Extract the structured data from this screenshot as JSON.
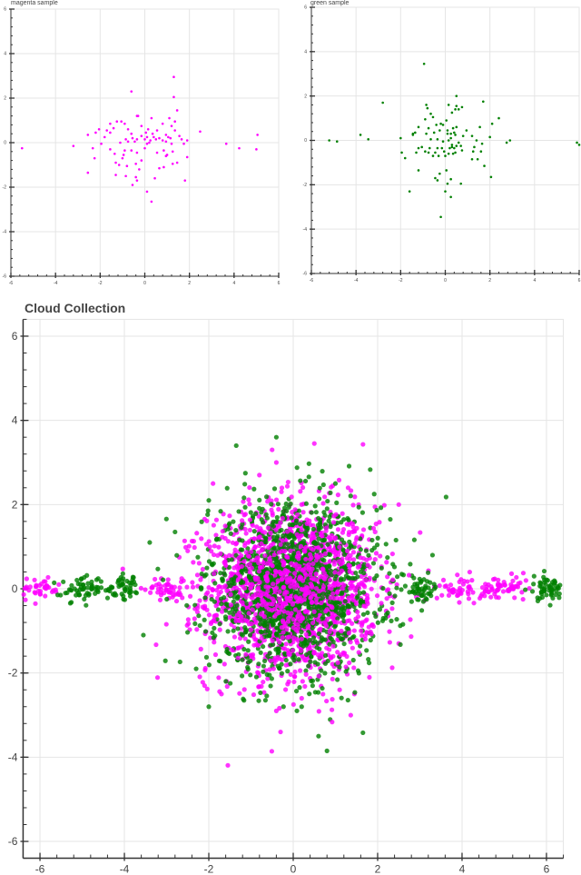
{
  "chart_data": [
    {
      "id": "magenta",
      "type": "scatter",
      "title": "magenta sample",
      "xlabel": "",
      "ylabel": "",
      "xlim": [
        -6,
        6
      ],
      "ylim": [
        -6,
        6
      ],
      "xticks": [
        -6,
        -4,
        -2,
        0,
        2,
        4,
        6
      ],
      "yticks": [
        -6,
        -4,
        -2,
        0,
        2,
        4,
        6
      ],
      "grid": true,
      "color": "#ff00ff",
      "points": [
        [
          -5.5,
          -0.25
        ],
        [
          -3.2,
          -0.15
        ],
        [
          -2.55,
          0.35
        ],
        [
          -2.33,
          -0.25
        ],
        [
          -2.55,
          -1.35
        ],
        [
          -0.6,
          2.3
        ],
        [
          1.3,
          2.95
        ],
        [
          1.3,
          2.05
        ],
        [
          3.65,
          -0.05
        ],
        [
          4.23,
          -0.25
        ],
        [
          5.0,
          -0.3
        ],
        [
          2.48,
          0.5
        ],
        [
          5.05,
          0.35
        ],
        [
          -2.2,
          0.45
        ],
        [
          -2.05,
          0.6
        ],
        [
          -1.55,
          0.85
        ],
        [
          -1.7,
          0.55
        ],
        [
          -1.55,
          0.45
        ],
        [
          -1.4,
          0.65
        ],
        [
          -1.25,
          0.95
        ],
        [
          -1.05,
          0.95
        ],
        [
          -0.9,
          0.85
        ],
        [
          -0.75,
          0.6
        ],
        [
          -0.6,
          0.4
        ],
        [
          -0.35,
          1.2
        ],
        [
          -0.3,
          1.2
        ],
        [
          -0.15,
          0.75
        ],
        [
          0.15,
          0.6
        ],
        [
          0.3,
          1.1
        ],
        [
          0.55,
          0.55
        ],
        [
          0.8,
          0.85
        ],
        [
          0.95,
          0.35
        ],
        [
          1.15,
          0.2
        ],
        [
          1.35,
          0.55
        ],
        [
          1.45,
          1.45
        ],
        [
          1.35,
          0.95
        ],
        [
          1.1,
          1.1
        ],
        [
          1.2,
          0.75
        ],
        [
          -1.1,
          0.0
        ],
        [
          -0.85,
          0.15
        ],
        [
          -0.55,
          0.2
        ],
        [
          -0.35,
          0.15
        ],
        [
          -0.15,
          0.3
        ],
        [
          0.0,
          0.15
        ],
        [
          0.1,
          0.25
        ],
        [
          0.25,
          0.1
        ],
        [
          0.4,
          0.25
        ],
        [
          0.5,
          0.15
        ],
        [
          0.65,
          0.2
        ],
        [
          0.8,
          0.1
        ],
        [
          0.95,
          0.05
        ],
        [
          1.05,
          0.25
        ],
        [
          1.2,
          -0.05
        ],
        [
          1.65,
          0.15
        ],
        [
          1.75,
          -0.05
        ],
        [
          1.9,
          0.1
        ],
        [
          -1.55,
          -0.3
        ],
        [
          -1.35,
          -0.5
        ],
        [
          -1.0,
          -0.7
        ],
        [
          -0.9,
          -0.35
        ],
        [
          -0.6,
          -0.35
        ],
        [
          -0.35,
          -0.45
        ],
        [
          -0.15,
          -0.8
        ],
        [
          0.0,
          -0.25
        ],
        [
          0.1,
          -0.05
        ],
        [
          0.55,
          -0.45
        ],
        [
          0.85,
          -0.35
        ],
        [
          0.95,
          -0.6
        ],
        [
          1.0,
          -0.55
        ],
        [
          1.25,
          -0.4
        ],
        [
          1.45,
          -0.9
        ],
        [
          1.9,
          -0.65
        ],
        [
          -1.3,
          -0.9
        ],
        [
          -1.15,
          -1.0
        ],
        [
          -0.8,
          -1.05
        ],
        [
          -0.4,
          -0.95
        ],
        [
          -0.25,
          -1.2
        ],
        [
          0.65,
          -1.15
        ],
        [
          0.85,
          -1.1
        ],
        [
          1.25,
          -0.95
        ],
        [
          -1.3,
          -1.45
        ],
        [
          -0.85,
          -1.5
        ],
        [
          -0.4,
          -1.55
        ],
        [
          -0.55,
          -1.9
        ],
        [
          -0.35,
          -1.7
        ],
        [
          0.45,
          -1.6
        ],
        [
          1.8,
          -1.7
        ],
        [
          0.1,
          -2.2
        ],
        [
          0.3,
          -2.65
        ],
        [
          -0.75,
          0.05
        ],
        [
          -0.45,
          0.05
        ],
        [
          0.2,
          0.0
        ],
        [
          0.35,
          0.4
        ],
        [
          0.05,
          0.45
        ],
        [
          -1.95,
          -0.05
        ],
        [
          -1.8,
          0.25
        ],
        [
          -2.25,
          -0.7
        ],
        [
          -0.95,
          -0.55
        ],
        [
          1.55,
          0.3
        ]
      ]
    },
    {
      "id": "green",
      "type": "scatter",
      "title": "green sample",
      "xlabel": "",
      "ylabel": "",
      "xlim": [
        -6,
        6
      ],
      "ylim": [
        -6,
        6
      ],
      "xticks": [
        -6,
        -4,
        -2,
        0,
        2,
        4,
        6
      ],
      "yticks": [
        -6,
        -4,
        -2,
        0,
        2,
        4,
        6
      ],
      "grid": true,
      "color": "#008000",
      "points": [
        [
          -5.2,
          0.0
        ],
        [
          -4.85,
          -0.05
        ],
        [
          -3.8,
          0.25
        ],
        [
          -3.45,
          0.05
        ],
        [
          -2.8,
          1.7
        ],
        [
          -0.95,
          3.45
        ],
        [
          0.5,
          2.0
        ],
        [
          1.7,
          1.75
        ],
        [
          2.4,
          1.0
        ],
        [
          2.1,
          0.75
        ],
        [
          2.75,
          -0.1
        ],
        [
          2.9,
          0.0
        ],
        [
          5.9,
          -0.1
        ],
        [
          6.0,
          -0.2
        ],
        [
          -2.0,
          0.1
        ],
        [
          -1.95,
          -0.55
        ],
        [
          -1.8,
          -0.8
        ],
        [
          -1.6,
          -2.3
        ],
        [
          -1.2,
          -1.35
        ],
        [
          -0.35,
          -1.8
        ],
        [
          -0.45,
          -1.7
        ],
        [
          -0.25,
          -1.5
        ],
        [
          0.05,
          -1.35
        ],
        [
          0.1,
          -1.95
        ],
        [
          0.0,
          -2.3
        ],
        [
          0.25,
          -2.55
        ],
        [
          -0.2,
          -3.45
        ],
        [
          0.7,
          -1.95
        ],
        [
          0.25,
          -1.75
        ],
        [
          2.05,
          -1.65
        ],
        [
          1.75,
          -1.15
        ],
        [
          1.2,
          -0.85
        ],
        [
          1.45,
          -0.85
        ],
        [
          -0.85,
          1.6
        ],
        [
          -0.8,
          1.45
        ],
        [
          -0.65,
          1.2
        ],
        [
          -0.55,
          1.05
        ],
        [
          -0.9,
          0.95
        ],
        [
          -0.75,
          0.55
        ],
        [
          -0.85,
          0.3
        ],
        [
          -0.65,
          0.05
        ],
        [
          -0.35,
          0.05
        ],
        [
          0.05,
          0.9
        ],
        [
          0.1,
          0.45
        ],
        [
          0.35,
          0.55
        ],
        [
          0.45,
          0.25
        ],
        [
          0.5,
          0.6
        ],
        [
          0.5,
          1.55
        ],
        [
          0.6,
          1.4
        ],
        [
          0.45,
          1.4
        ],
        [
          0.75,
          1.5
        ],
        [
          0.15,
          1.6
        ],
        [
          0.3,
          1.25
        ],
        [
          -0.4,
          0.7
        ],
        [
          -0.2,
          0.75
        ],
        [
          -0.1,
          0.7
        ],
        [
          0.25,
          0.3
        ],
        [
          0.4,
          0.35
        ],
        [
          -1.45,
          0.3
        ],
        [
          -1.45,
          0.25
        ],
        [
          -1.2,
          0.6
        ],
        [
          -1.35,
          0.35
        ],
        [
          -1.3,
          -0.55
        ],
        [
          -1.2,
          -0.35
        ],
        [
          -1.05,
          -0.3
        ],
        [
          -0.9,
          -0.5
        ],
        [
          -0.75,
          -0.55
        ],
        [
          -0.7,
          -0.35
        ],
        [
          -0.55,
          -0.7
        ],
        [
          -0.45,
          -0.55
        ],
        [
          -0.35,
          -0.35
        ],
        [
          -0.3,
          -0.7
        ],
        [
          -0.15,
          -0.35
        ],
        [
          -0.05,
          -0.5
        ],
        [
          0.0,
          -0.7
        ],
        [
          0.15,
          -0.6
        ],
        [
          0.2,
          -0.35
        ],
        [
          0.3,
          -0.3
        ],
        [
          0.35,
          -0.6
        ],
        [
          0.4,
          -0.35
        ],
        [
          0.45,
          -0.55
        ],
        [
          0.5,
          -0.25
        ],
        [
          0.6,
          -0.1
        ],
        [
          0.7,
          -0.25
        ],
        [
          0.75,
          -0.45
        ],
        [
          1.2,
          0.2
        ],
        [
          1.4,
          0.0
        ],
        [
          1.55,
          0.6
        ],
        [
          1.6,
          -0.5
        ],
        [
          1.65,
          -0.15
        ],
        [
          2.0,
          0.15
        ],
        [
          1.25,
          -0.5
        ],
        [
          1.3,
          -0.3
        ],
        [
          -0.1,
          -0.05
        ],
        [
          0.15,
          0.0
        ],
        [
          0.25,
          0.1
        ],
        [
          0.3,
          -0.2
        ],
        [
          0.1,
          0.3
        ],
        [
          -0.25,
          0.45
        ],
        [
          -0.5,
          0.35
        ],
        [
          0.8,
          0.2
        ],
        [
          0.95,
          0.45
        ]
      ]
    },
    {
      "id": "collection",
      "type": "scatter",
      "title": "Cloud Collection",
      "xlabel": "",
      "ylabel": "",
      "xlim": [
        -6.4,
        6.4
      ],
      "ylim": [
        -6.4,
        6.4
      ],
      "xticks": [
        -6,
        -4,
        -2,
        0,
        2,
        4,
        6
      ],
      "yticks": [
        -6,
        -4,
        -2,
        0,
        2,
        4,
        6
      ],
      "grid": true,
      "series": [
        {
          "name": "magenta",
          "color": "#ff00ff",
          "alpha": 0.8,
          "clusters": [
            {
              "center": [
                0,
                0
              ],
              "spread": [
                1.0,
                1.0
              ],
              "count": 1400
            },
            {
              "center": [
                -6,
                0
              ],
              "spread": [
                0.25,
                0.15
              ],
              "count": 40
            },
            {
              "center": [
                -3,
                0
              ],
              "spread": [
                0.25,
                0.15
              ],
              "count": 45
            },
            {
              "center": [
                4,
                0
              ],
              "spread": [
                0.3,
                0.15
              ],
              "count": 50
            },
            {
              "center": [
                5,
                0
              ],
              "spread": [
                0.3,
                0.15
              ],
              "count": 55
            }
          ],
          "outliers": [
            [
              -0.4,
              3.0
            ],
            [
              -0.5,
              3.3
            ],
            [
              0.5,
              3.45
            ],
            [
              -1.9,
              2.5
            ],
            [
              1.3,
              2.4
            ],
            [
              1.55,
              2.0
            ],
            [
              2.5,
              2.0
            ],
            [
              -2.5,
              0.9
            ],
            [
              -2.7,
              0.75
            ],
            [
              -1.7,
              -2.5
            ],
            [
              -2.1,
              -2.3
            ],
            [
              -0.3,
              -3.4
            ],
            [
              1.45,
              -2.5
            ],
            [
              1.1,
              -2.4
            ],
            [
              2.5,
              -1.3
            ],
            [
              -0.4,
              -2.9
            ],
            [
              0.2,
              -2.6
            ]
          ]
        },
        {
          "name": "green",
          "color": "#008000",
          "alpha": 0.8,
          "clusters": [
            {
              "center": [
                0,
                0
              ],
              "spread": [
                1.0,
                1.0
              ],
              "count": 1400
            },
            {
              "center": [
                -5,
                0
              ],
              "spread": [
                0.25,
                0.15
              ],
              "count": 55
            },
            {
              "center": [
                -4,
                0
              ],
              "spread": [
                0.22,
                0.15
              ],
              "count": 50
            },
            {
              "center": [
                3,
                0
              ],
              "spread": [
                0.22,
                0.15
              ],
              "count": 50
            },
            {
              "center": [
                6,
                0
              ],
              "spread": [
                0.22,
                0.15
              ],
              "count": 55
            }
          ],
          "outliers": [
            [
              -0.4,
              3.6
            ],
            [
              -1.35,
              3.4
            ],
            [
              -2.0,
              2.1
            ],
            [
              -3.4,
              1.1
            ],
            [
              1.0,
              2.5
            ],
            [
              2.3,
              1.65
            ],
            [
              -2.0,
              -2.8
            ],
            [
              0.6,
              -3.5
            ],
            [
              0.8,
              -3.85
            ],
            [
              0.2,
              -2.8
            ],
            [
              -2.3,
              -1.9
            ],
            [
              -3.55,
              -1.1
            ],
            [
              -2.8,
              1.35
            ],
            [
              3.3,
              0.8
            ]
          ]
        }
      ]
    }
  ]
}
